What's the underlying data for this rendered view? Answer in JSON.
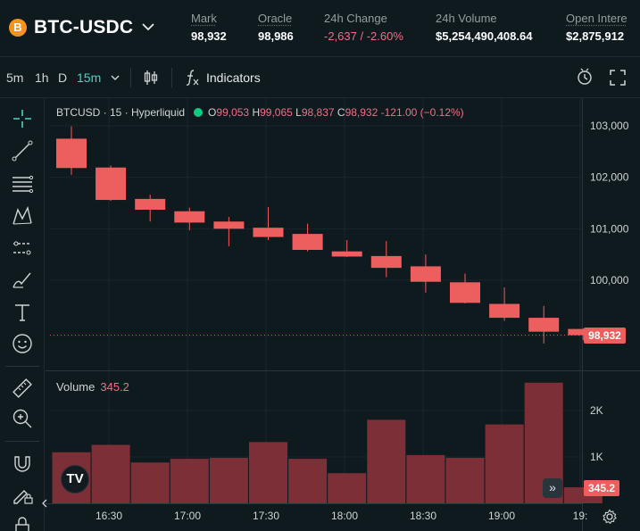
{
  "header": {
    "pair": "BTC-USDC",
    "coin_icon": "B",
    "stats": [
      {
        "label": "Mark",
        "value": "98,932"
      },
      {
        "label": "Oracle",
        "value": "98,986"
      },
      {
        "label": "24h Change",
        "value": "-2,637 / -2.60%"
      },
      {
        "label": "24h Volume",
        "value": "$5,254,490,408.64"
      },
      {
        "label": "Open Intere",
        "value": "$2,875,912"
      }
    ]
  },
  "timeframes": {
    "items": [
      "5m",
      "1h",
      "D"
    ],
    "active": "15m",
    "indicators_label": "Indicators"
  },
  "legend": {
    "symbol": "BTCUSD · 15 · Hyperliquid",
    "open_key": "O",
    "open": "99,053",
    "high_key": "H",
    "high": "99,065",
    "low_key": "L",
    "low": "98,837",
    "close_key": "C",
    "close": "98,932",
    "change": "-121.00 (−0.12%)"
  },
  "volume_legend": {
    "label": "Volume",
    "value": "345.2"
  },
  "price_tag": "98,932",
  "volume_tag": "345.2",
  "tv_logo": "TV",
  "goto_icon": "»",
  "colors": {
    "down": "#ed5f5f",
    "volume": "#7d2f37",
    "accent": "#50d2c1"
  },
  "chart_data": {
    "type": "candlestick",
    "price_axis": {
      "ticks": [
        "103,000",
        "102,000",
        "101,000",
        "100,000"
      ],
      "ylim": [
        98500,
        103200
      ]
    },
    "volume_axis": {
      "ticks": [
        "2K",
        "1K"
      ],
      "ylim": [
        0,
        2600
      ]
    },
    "time_axis": {
      "ticks": [
        "16:30",
        "17:00",
        "17:30",
        "18:00",
        "18:30",
        "19:00",
        "19:"
      ]
    },
    "candles": [
      {
        "o": 102750,
        "h": 102990,
        "l": 102050,
        "c": 102180
      },
      {
        "o": 102190,
        "h": 102230,
        "l": 101540,
        "c": 101560
      },
      {
        "o": 101580,
        "h": 101660,
        "l": 101140,
        "c": 101370
      },
      {
        "o": 101340,
        "h": 101410,
        "l": 100970,
        "c": 101120
      },
      {
        "o": 101140,
        "h": 101230,
        "l": 100660,
        "c": 101000
      },
      {
        "o": 101020,
        "h": 101420,
        "l": 100780,
        "c": 100840
      },
      {
        "o": 100900,
        "h": 101100,
        "l": 100560,
        "c": 100590
      },
      {
        "o": 100560,
        "h": 100780,
        "l": 100450,
        "c": 100460
      },
      {
        "o": 100470,
        "h": 100760,
        "l": 100060,
        "c": 100240
      },
      {
        "o": 100270,
        "h": 100500,
        "l": 99760,
        "c": 99970
      },
      {
        "o": 99960,
        "h": 100130,
        "l": 99550,
        "c": 99560
      },
      {
        "o": 99540,
        "h": 99860,
        "l": 99210,
        "c": 99270
      },
      {
        "o": 99270,
        "h": 99500,
        "l": 98770,
        "c": 99000
      },
      {
        "o": 99053,
        "h": 99065,
        "l": 98837,
        "c": 98932
      }
    ],
    "volumes": [
      1100,
      1260,
      880,
      960,
      980,
      1320,
      960,
      650,
      1800,
      1040,
      980,
      1700,
      2600,
      345
    ]
  }
}
